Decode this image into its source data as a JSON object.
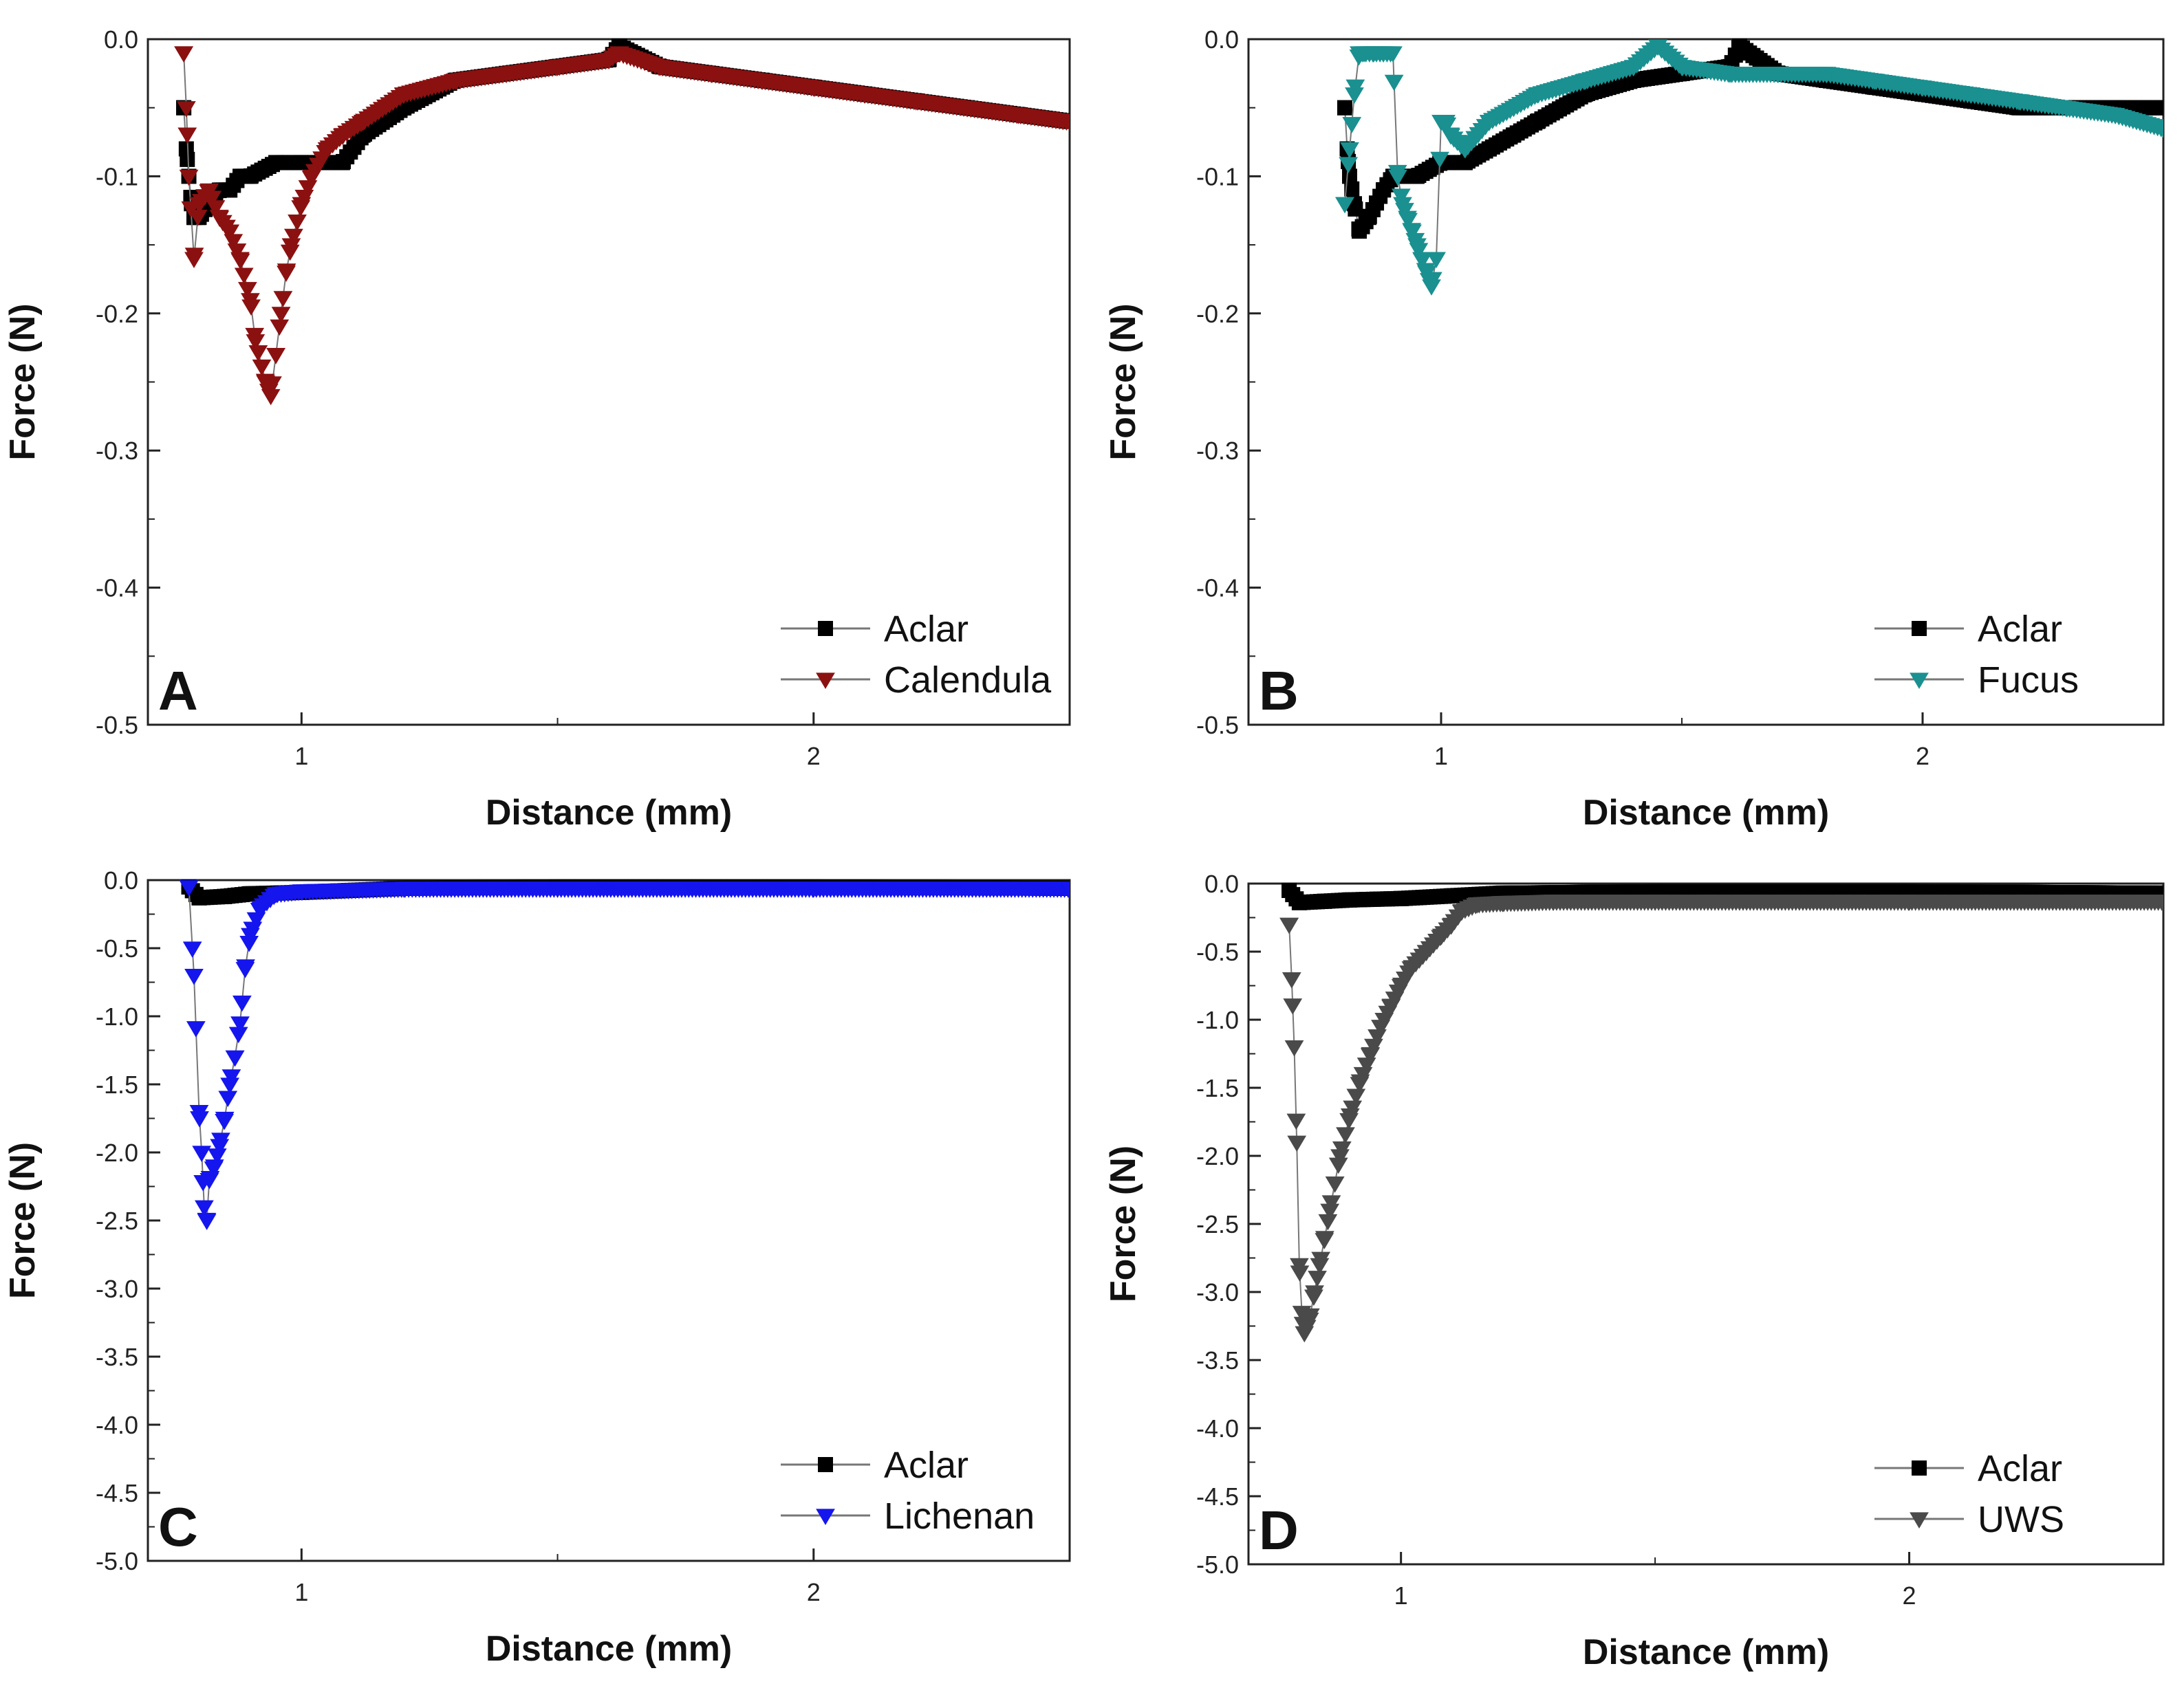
{
  "figure": {
    "description_free": true,
    "x_axis_title": "Distance (mm)",
    "y_axis_title": "Force (N)"
  },
  "chart_data": [
    {
      "type": "scatter",
      "panel": "A",
      "xlabel": "Distance (mm)",
      "ylabel": "Force (N)",
      "xlim": [
        0.7,
        2.5
      ],
      "ylim": [
        -0.5,
        0.0
      ],
      "xticks": [
        1,
        2
      ],
      "xtick_labels": [
        "1",
        "2"
      ],
      "yticks": [
        0.0,
        -0.1,
        -0.2,
        -0.3,
        -0.4,
        -0.5
      ],
      "ytick_labels": [
        "0.0",
        "-0.1",
        "-0.2",
        "-0.3",
        "-0.4",
        "-0.5"
      ],
      "legend_position": "bottom-right",
      "series": [
        {
          "name": "Aclar",
          "marker": "square",
          "color": "#000000",
          "x": [
            0.77,
            0.775,
            0.78,
            0.785,
            0.79,
            0.8,
            0.82,
            0.84,
            0.86,
            0.88,
            0.9,
            0.95,
            1.0,
            1.05,
            1.08,
            1.12,
            1.2,
            1.3,
            1.4,
            1.5,
            1.6,
            1.62,
            1.7,
            1.8,
            1.9,
            2.0,
            2.1,
            2.2,
            2.3,
            2.4,
            2.5
          ],
          "y": [
            -0.05,
            -0.08,
            -0.1,
            -0.12,
            -0.13,
            -0.13,
            -0.12,
            -0.11,
            -0.11,
            -0.1,
            -0.1,
            -0.09,
            -0.09,
            -0.09,
            -0.09,
            -0.07,
            -0.05,
            -0.03,
            -0.025,
            -0.02,
            -0.015,
            -0.005,
            -0.02,
            -0.025,
            -0.03,
            -0.035,
            -0.04,
            -0.045,
            -0.05,
            -0.055,
            -0.06
          ]
        },
        {
          "name": "Calendula",
          "marker": "triangle-down",
          "color": "#8b1111",
          "x": [
            0.77,
            0.775,
            0.78,
            0.79,
            0.8,
            0.82,
            0.84,
            0.86,
            0.88,
            0.9,
            0.91,
            0.93,
            0.94,
            0.95,
            0.96,
            0.97,
            0.98,
            1.0,
            1.02,
            1.05,
            1.08,
            1.12,
            1.2,
            1.3,
            1.4,
            1.5,
            1.6,
            1.62,
            1.7,
            1.8,
            1.9,
            2.0,
            2.1,
            2.2,
            2.3,
            2.4,
            2.5
          ],
          "y": [
            -0.01,
            -0.05,
            -0.1,
            -0.16,
            -0.12,
            -0.11,
            -0.13,
            -0.14,
            -0.16,
            -0.19,
            -0.22,
            -0.25,
            -0.26,
            -0.23,
            -0.2,
            -0.17,
            -0.15,
            -0.12,
            -0.1,
            -0.08,
            -0.07,
            -0.06,
            -0.04,
            -0.03,
            -0.025,
            -0.02,
            -0.015,
            -0.01,
            -0.02,
            -0.025,
            -0.03,
            -0.035,
            -0.04,
            -0.045,
            -0.05,
            -0.055,
            -0.06
          ]
        }
      ]
    },
    {
      "type": "scatter",
      "panel": "B",
      "xlabel": "Distance (mm)",
      "ylabel": "Force (N)",
      "xlim": [
        0.6,
        2.5
      ],
      "ylim": [
        -0.5,
        0.0
      ],
      "xticks": [
        1,
        2
      ],
      "xtick_labels": [
        "1",
        "2"
      ],
      "yticks": [
        0.0,
        -0.1,
        -0.2,
        -0.3,
        -0.4,
        -0.5
      ],
      "ytick_labels": [
        "0.0",
        "-0.1",
        "-0.2",
        "-0.3",
        "-0.4",
        "-0.5"
      ],
      "legend_position": "bottom-right",
      "series": [
        {
          "name": "Aclar",
          "marker": "square",
          "color": "#000000",
          "x": [
            0.8,
            0.805,
            0.81,
            0.82,
            0.83,
            0.85,
            0.88,
            0.9,
            0.95,
            1.0,
            1.05,
            1.1,
            1.15,
            1.2,
            1.3,
            1.4,
            1.5,
            1.6,
            1.62,
            1.7,
            1.8,
            1.9,
            2.0,
            2.1,
            2.2,
            2.3,
            2.4,
            2.5
          ],
          "y": [
            -0.05,
            -0.08,
            -0.1,
            -0.12,
            -0.14,
            -0.13,
            -0.11,
            -0.1,
            -0.1,
            -0.09,
            -0.09,
            -0.08,
            -0.07,
            -0.06,
            -0.04,
            -0.03,
            -0.025,
            -0.02,
            -0.005,
            -0.025,
            -0.03,
            -0.035,
            -0.04,
            -0.045,
            -0.05,
            -0.05,
            -0.05,
            -0.05
          ]
        },
        {
          "name": "Fucus",
          "marker": "triangle-down",
          "color": "#1a9090",
          "x": [
            0.8,
            0.81,
            0.82,
            0.83,
            0.84,
            0.86,
            0.88,
            0.9,
            0.91,
            0.92,
            0.93,
            0.94,
            0.95,
            0.96,
            0.97,
            0.98,
            0.99,
            1.0,
            1.01,
            1.02,
            1.05,
            1.1,
            1.2,
            1.3,
            1.4,
            1.45,
            1.5,
            1.6,
            1.7,
            1.8,
            1.9,
            2.0,
            2.1,
            2.2,
            2.3,
            2.4,
            2.5
          ],
          "y": [
            -0.12,
            -0.08,
            -0.04,
            -0.01,
            -0.01,
            -0.01,
            -0.01,
            -0.01,
            -0.1,
            -0.12,
            -0.13,
            -0.14,
            -0.15,
            -0.16,
            -0.17,
            -0.18,
            -0.16,
            -0.06,
            -0.06,
            -0.07,
            -0.08,
            -0.06,
            -0.04,
            -0.03,
            -0.02,
            -0.005,
            -0.02,
            -0.025,
            -0.025,
            -0.025,
            -0.03,
            -0.035,
            -0.04,
            -0.045,
            -0.05,
            -0.055,
            -0.065
          ]
        }
      ]
    },
    {
      "type": "scatter",
      "panel": "C",
      "xlabel": "Distance (mm)",
      "ylabel": "Force (N)",
      "xlim": [
        0.7,
        2.5
      ],
      "ylim": [
        -5.0,
        0.0
      ],
      "xticks": [
        1,
        2
      ],
      "xtick_labels": [
        "1",
        "2"
      ],
      "yticks": [
        0.0,
        -0.5,
        -1.0,
        -1.5,
        -2.0,
        -2.5,
        -3.0,
        -3.5,
        -4.0,
        -4.5,
        -5.0
      ],
      "ytick_labels": [
        "0.0",
        "-0.5",
        "-1.0",
        "-1.5",
        "-2.0",
        "-2.5",
        "-3.0",
        "-3.5",
        "-4.0",
        "-4.5",
        "-5.0"
      ],
      "legend_position": "bottom-right",
      "series": [
        {
          "name": "Aclar",
          "marker": "square",
          "color": "#000000",
          "x": [
            0.78,
            0.8,
            0.85,
            0.9,
            1.0,
            1.2,
            1.5,
            2.0,
            2.5
          ],
          "y": [
            -0.05,
            -0.13,
            -0.12,
            -0.1,
            -0.09,
            -0.06,
            -0.05,
            -0.05,
            -0.06
          ]
        },
        {
          "name": "Lichenan",
          "marker": "triangle-down",
          "color": "#1515ee",
          "x": [
            0.78,
            0.79,
            0.8,
            0.805,
            0.81,
            0.815,
            0.82,
            0.83,
            0.84,
            0.85,
            0.86,
            0.87,
            0.88,
            0.89,
            0.9,
            0.92,
            0.95,
            1.0,
            1.2,
            1.5,
            2.0,
            2.5
          ],
          "y": [
            -0.05,
            -0.7,
            -1.7,
            -2.0,
            -2.4,
            -2.5,
            -2.2,
            -2.1,
            -1.95,
            -1.75,
            -1.5,
            -1.3,
            -1.05,
            -0.65,
            -0.4,
            -0.2,
            -0.1,
            -0.08,
            -0.06,
            -0.06,
            -0.06,
            -0.06
          ]
        }
      ]
    },
    {
      "type": "scatter",
      "panel": "D",
      "xlabel": "Distance (mm)",
      "ylabel": "Force (N)",
      "xlim": [
        0.7,
        2.5
      ],
      "ylim": [
        -5.0,
        0.0
      ],
      "xticks": [
        1,
        2
      ],
      "xtick_labels": [
        "1",
        "2"
      ],
      "yticks": [
        0.0,
        -0.5,
        -1.0,
        -1.5,
        -2.0,
        -2.5,
        -3.0,
        -3.5,
        -4.0,
        -4.5,
        -5.0
      ],
      "ytick_labels": [
        "0.0",
        "-0.5",
        "-1.0",
        "-1.5",
        "-2.0",
        "-2.5",
        "-3.0",
        "-3.5",
        "-4.0",
        "-4.5",
        "-5.0"
      ],
      "legend_position": "bottom-right",
      "series": [
        {
          "name": "Aclar",
          "marker": "square",
          "color": "#000000",
          "x": [
            0.78,
            0.8,
            0.85,
            0.9,
            1.0,
            1.1,
            1.2,
            1.5,
            2.0,
            2.5
          ],
          "y": [
            -0.05,
            -0.14,
            -0.13,
            -0.12,
            -0.11,
            -0.09,
            -0.07,
            -0.06,
            -0.06,
            -0.07
          ]
        },
        {
          "name": "UWS",
          "marker": "triangle-down",
          "color": "#4a4a4a",
          "x": [
            0.78,
            0.785,
            0.79,
            0.795,
            0.8,
            0.805,
            0.81,
            0.82,
            0.83,
            0.84,
            0.85,
            0.86,
            0.87,
            0.88,
            0.9,
            0.92,
            0.94,
            0.96,
            0.98,
            1.0,
            1.02,
            1.05,
            1.08,
            1.1,
            1.12,
            1.15,
            1.2,
            1.3,
            1.5,
            2.0,
            2.5
          ],
          "y": [
            -0.3,
            -0.7,
            -1.2,
            -1.9,
            -2.8,
            -3.15,
            -3.3,
            -3.2,
            -3.0,
            -2.8,
            -2.6,
            -2.4,
            -2.2,
            -2.0,
            -1.7,
            -1.45,
            -1.25,
            -1.05,
            -0.9,
            -0.75,
            -0.62,
            -0.5,
            -0.38,
            -0.3,
            -0.2,
            -0.15,
            -0.14,
            -0.13,
            -0.13,
            -0.13,
            -0.13
          ]
        }
      ]
    }
  ]
}
